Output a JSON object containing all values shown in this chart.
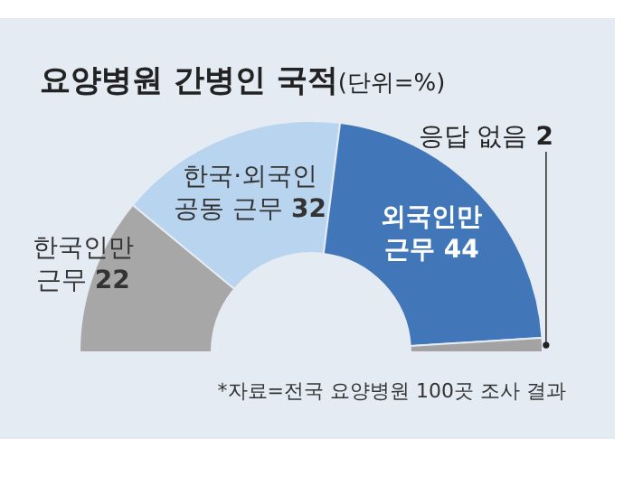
{
  "chart_data": {
    "type": "donut",
    "title": "요양병원 간병인 국적",
    "subtitle": "(단위=%)",
    "categories": [
      "한국인만 근무",
      "한국·외국인 공동 근무",
      "외국인만 근무",
      "응답 없음"
    ],
    "values": [
      22,
      32,
      44,
      2
    ],
    "colors": [
      "#a7a7a7",
      "#b8d4ee",
      "#4176b9",
      "#a3a3a3"
    ],
    "data_labels": true,
    "annotations": [
      "*자료=전국 요양병원 100곳 조사 결과"
    ]
  }
}
